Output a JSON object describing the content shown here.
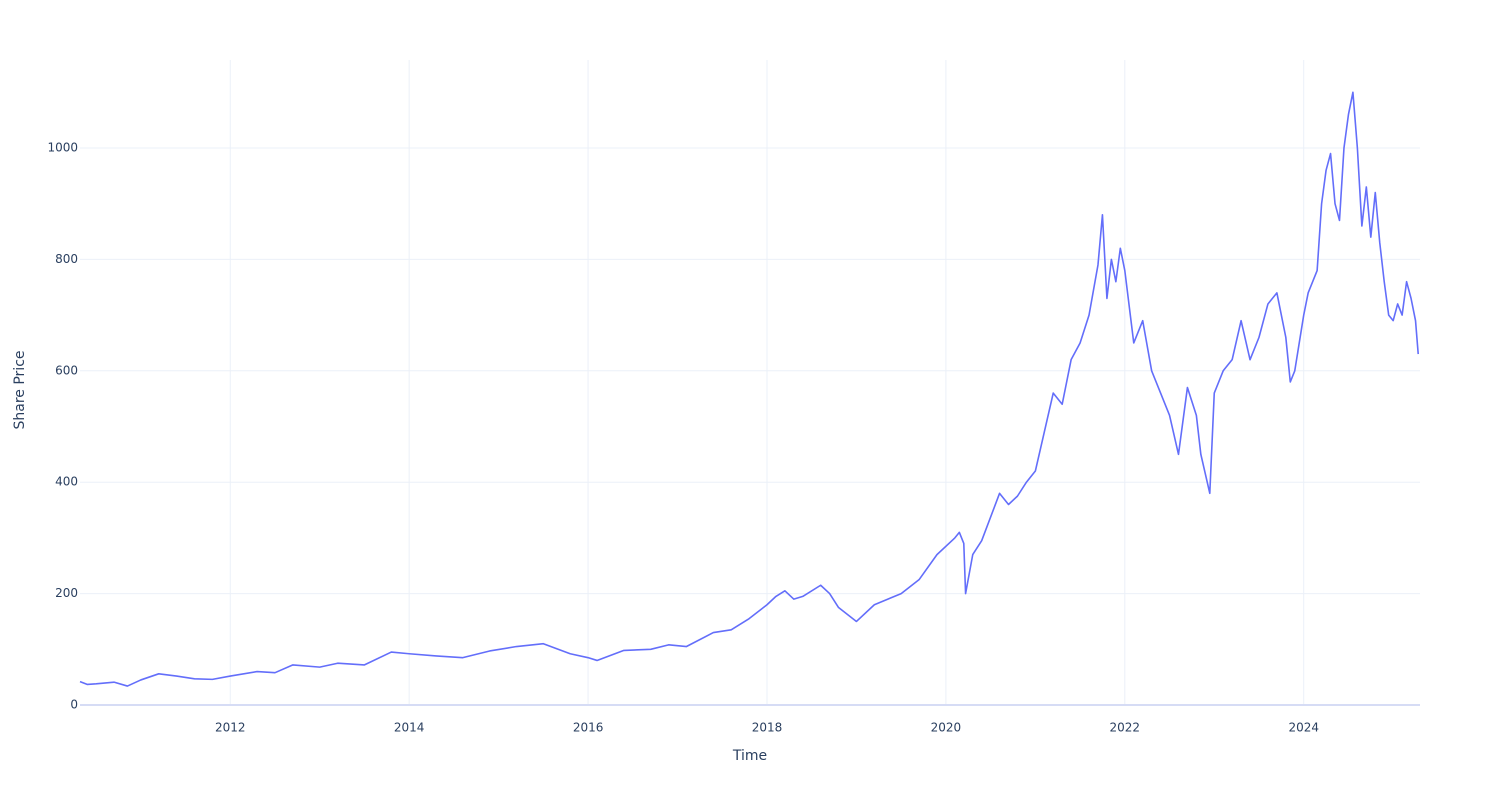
{
  "chart_data": {
    "type": "line",
    "x_label": "Time",
    "y_label": "Share Price",
    "color": "#636efa",
    "grid": true,
    "x": [
      2010.32,
      2010.4,
      2010.5,
      2010.7,
      2010.85,
      2011.0,
      2011.2,
      2011.4,
      2011.6,
      2011.8,
      2012.0,
      2012.3,
      2012.5,
      2012.7,
      2013.0,
      2013.2,
      2013.5,
      2013.8,
      2014.0,
      2014.3,
      2014.6,
      2014.9,
      2015.2,
      2015.5,
      2015.8,
      2016.0,
      2016.1,
      2016.4,
      2016.7,
      2016.9,
      2017.1,
      2017.4,
      2017.6,
      2017.8,
      2018.0,
      2018.1,
      2018.2,
      2018.3,
      2018.4,
      2018.6,
      2018.7,
      2018.8,
      2019.0,
      2019.2,
      2019.5,
      2019.7,
      2019.9,
      2020.1,
      2020.15,
      2020.2,
      2020.22,
      2020.3,
      2020.4,
      2020.6,
      2020.7,
      2020.8,
      2020.9,
      2021.0,
      2021.1,
      2021.2,
      2021.3,
      2021.4,
      2021.5,
      2021.6,
      2021.7,
      2021.75,
      2021.8,
      2021.85,
      2021.9,
      2021.95,
      2022.0,
      2022.1,
      2022.2,
      2022.3,
      2022.4,
      2022.5,
      2022.6,
      2022.7,
      2022.8,
      2022.85,
      2022.95,
      2023.0,
      2023.1,
      2023.2,
      2023.3,
      2023.4,
      2023.5,
      2023.6,
      2023.7,
      2023.8,
      2023.85,
      2023.9,
      2024.0,
      2024.05,
      2024.1,
      2024.15,
      2024.2,
      2024.25,
      2024.3,
      2024.35,
      2024.4,
      2024.45,
      2024.5,
      2024.55,
      2024.6,
      2024.65,
      2024.7,
      2024.75,
      2024.8,
      2024.85,
      2024.9,
      2024.95,
      2025.0,
      2025.05,
      2025.1,
      2025.15,
      2025.2,
      2025.25,
      2025.28
    ],
    "values": [
      42,
      37,
      38,
      41,
      34,
      45,
      56,
      52,
      47,
      46,
      52,
      60,
      58,
      72,
      68,
      75,
      72,
      95,
      92,
      88,
      85,
      97,
      105,
      110,
      92,
      85,
      80,
      98,
      100,
      108,
      105,
      130,
      135,
      155,
      180,
      195,
      205,
      190,
      195,
      215,
      200,
      175,
      150,
      180,
      200,
      225,
      270,
      300,
      310,
      290,
      200,
      270,
      295,
      380,
      360,
      375,
      400,
      420,
      490,
      560,
      540,
      620,
      650,
      700,
      790,
      880,
      730,
      800,
      760,
      820,
      780,
      650,
      690,
      600,
      560,
      520,
      450,
      570,
      520,
      450,
      380,
      560,
      600,
      620,
      690,
      620,
      660,
      720,
      740,
      660,
      580,
      600,
      700,
      740,
      760,
      780,
      900,
      960,
      990,
      900,
      870,
      1000,
      1060,
      1100,
      1000,
      860,
      930,
      840,
      920,
      830,
      760,
      700,
      690,
      720,
      700,
      760,
      730,
      690,
      630
    ],
    "xlim": [
      2010.32,
      2025.3
    ],
    "xticks": [
      2012,
      2014,
      2016,
      2018,
      2020,
      2022,
      2024
    ],
    "ylim": [
      0,
      1158
    ],
    "yticks": [
      0,
      200,
      400,
      600,
      800,
      1000
    ]
  }
}
